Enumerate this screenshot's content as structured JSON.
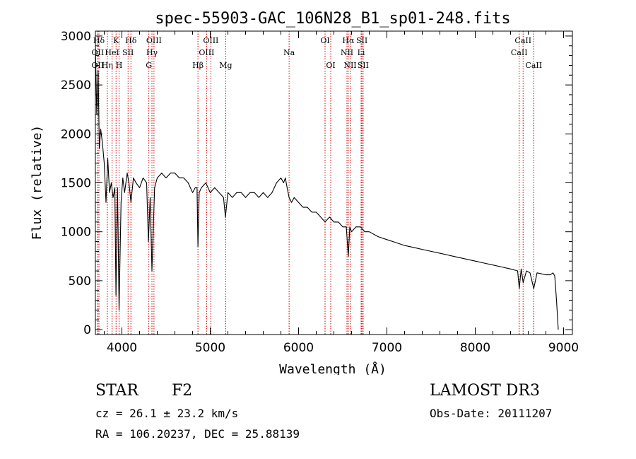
{
  "chart_data": {
    "type": "line",
    "title": "spec-55903-GAC_106N28_B1_sp01-248.fits",
    "xlabel": "Wavelength (Å)",
    "ylabel": "Flux (relative)",
    "xlim": [
      3700,
      9100
    ],
    "ylim": [
      -50,
      3050
    ],
    "xticks": [
      4000,
      5000,
      6000,
      7000,
      8000,
      9000
    ],
    "xtick_labels": [
      "4000",
      "5000",
      "6000",
      "7000",
      "8000",
      "9000"
    ],
    "yticks": [
      0,
      500,
      1000,
      1500,
      2000,
      2500,
      3000
    ],
    "ytick_labels": [
      "0",
      "500",
      "1000",
      "1500",
      "2000",
      "2500",
      "3000"
    ],
    "series": [
      {
        "name": "flux",
        "x": [
          3700,
          3715,
          3730,
          3745,
          3760,
          3780,
          3800,
          3820,
          3840,
          3860,
          3880,
          3900,
          3920,
          3933,
          3950,
          3968,
          3990,
          4010,
          4030,
          4060,
          4080,
          4102,
          4130,
          4160,
          4200,
          4240,
          4280,
          4300,
          4320,
          4340,
          4370,
          4400,
          4450,
          4500,
          4550,
          4600,
          4650,
          4700,
          4750,
          4800,
          4830,
          4850,
          4861,
          4875,
          4900,
          4950,
          5000,
          5050,
          5100,
          5150,
          5172,
          5200,
          5250,
          5300,
          5350,
          5400,
          5450,
          5500,
          5550,
          5600,
          5650,
          5700,
          5750,
          5800,
          5830,
          5850,
          5870,
          5893,
          5920,
          5950,
          6000,
          6050,
          6100,
          6150,
          6200,
          6250,
          6300,
          6350,
          6400,
          6450,
          6500,
          6540,
          6563,
          6580,
          6600,
          6650,
          6700,
          6750,
          6800,
          6900,
          7000,
          7100,
          7200,
          7300,
          7400,
          7500,
          7600,
          7700,
          7800,
          7900,
          8000,
          8100,
          8200,
          8300,
          8400,
          8480,
          8498,
          8520,
          8542,
          8580,
          8620,
          8662,
          8700,
          8750,
          8800,
          8850,
          8880,
          8900,
          8920,
          8940
        ],
        "y": [
          2900,
          2200,
          2650,
          1850,
          2050,
          1900,
          1700,
          1300,
          1750,
          1400,
          1500,
          1350,
          1450,
          350,
          1450,
          200,
          1300,
          1550,
          1400,
          1600,
          1500,
          1300,
          1550,
          1500,
          1450,
          1550,
          1500,
          900,
          1350,
          600,
          1450,
          1550,
          1600,
          1550,
          1600,
          1600,
          1550,
          1550,
          1500,
          1400,
          1450,
          1450,
          850,
          1400,
          1450,
          1500,
          1400,
          1450,
          1400,
          1350,
          1150,
          1400,
          1350,
          1400,
          1400,
          1350,
          1400,
          1400,
          1350,
          1400,
          1350,
          1400,
          1500,
          1550,
          1500,
          1550,
          1450,
          1350,
          1300,
          1350,
          1300,
          1250,
          1250,
          1200,
          1200,
          1150,
          1100,
          1150,
          1100,
          1100,
          1050,
          1050,
          750,
          1050,
          1000,
          1050,
          1050,
          1000,
          1000,
          950,
          920,
          890,
          860,
          840,
          820,
          800,
          780,
          760,
          740,
          720,
          700,
          680,
          660,
          640,
          620,
          600,
          420,
          620,
          480,
          600,
          580,
          420,
          580,
          570,
          560,
          560,
          580,
          550,
          300,
          0
        ]
      }
    ],
    "lines": [
      {
        "label": "Hδ",
        "x": 3740,
        "row": 0,
        "color": "#cc0000"
      },
      {
        "label": "OII",
        "x": 3727,
        "row": 1,
        "color": "#cc0000"
      },
      {
        "label": "OII",
        "x": 3727,
        "row": 2,
        "color": "#cc0000"
      },
      {
        "label": "Hη",
        "x": 3835,
        "row": 2,
        "color": "#cc0000"
      },
      {
        "label": "HeI",
        "x": 3889,
        "row": 1,
        "color": "#cc0000"
      },
      {
        "label": "K",
        "x": 3934,
        "row": 0,
        "color": "#cc0000"
      },
      {
        "label": "H",
        "x": 3968,
        "row": 2,
        "color": "#cc0000"
      },
      {
        "label": "SII",
        "x": 4070,
        "row": 1,
        "color": "#cc0000"
      },
      {
        "label": "Hδ",
        "x": 4102,
        "row": 0,
        "color": "#cc0000"
      },
      {
        "label": "OIII",
        "x": 4363,
        "row": 0,
        "color": "#cc0000"
      },
      {
        "label": "Hγ",
        "x": 4340,
        "row": 1,
        "color": "#cc0000"
      },
      {
        "label": "G",
        "x": 4305,
        "row": 2,
        "color": "#cc0000"
      },
      {
        "label": "Hβ",
        "x": 4861,
        "row": 2,
        "color": "#cc0000"
      },
      {
        "label": "OIII",
        "x": 5007,
        "row": 0,
        "color": "#cc0000"
      },
      {
        "label": "OIII",
        "x": 4959,
        "row": 1,
        "color": "#cc0000"
      },
      {
        "label": "Mg",
        "x": 5175,
        "row": 2,
        "color": "#cc0000"
      },
      {
        "label": "Na",
        "x": 5893,
        "row": 1,
        "color": "#cc0000"
      },
      {
        "label": "OI",
        "x": 6300,
        "row": 0,
        "color": "#cc0000"
      },
      {
        "label": "OI",
        "x": 6364,
        "row": 2,
        "color": "#cc0000"
      },
      {
        "label": "Hα",
        "x": 6563,
        "row": 0,
        "color": "#cc0000"
      },
      {
        "label": "NII",
        "x": 6548,
        "row": 1,
        "color": "#cc0000"
      },
      {
        "label": "NII",
        "x": 6584,
        "row": 2,
        "color": "#cc0000"
      },
      {
        "label": "SII",
        "x": 6717,
        "row": 0,
        "color": "#cc0000"
      },
      {
        "label": "Li",
        "x": 6708,
        "row": 1,
        "color": "#cc0000"
      },
      {
        "label": "SII",
        "x": 6731,
        "row": 2,
        "color": "#cc0000"
      },
      {
        "label": "CaII",
        "x": 8542,
        "row": 0,
        "color": "#cc0000"
      },
      {
        "label": "CaII",
        "x": 8498,
        "row": 1,
        "color": "#cc0000"
      },
      {
        "label": "CaII",
        "x": 8662,
        "row": 2,
        "color": "#cc0000"
      }
    ]
  },
  "info": {
    "class": "STAR",
    "subclass": "F2",
    "survey": "LAMOST DR3",
    "cz": "cz = 26.1 ± 23.2 km/s",
    "obs_date": "Obs-Date: 20111207",
    "radec": "RA = 106.20237, DEC =  25.88139"
  }
}
